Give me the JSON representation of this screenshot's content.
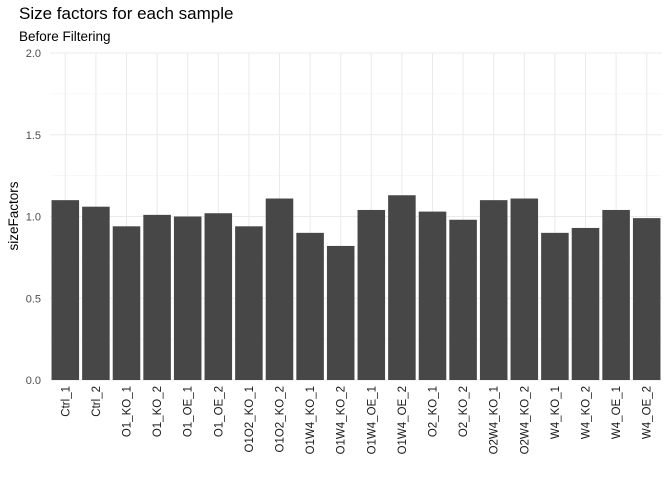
{
  "chart_data": {
    "type": "bar",
    "title": "Size factors for each sample",
    "subtitle": "Before Filtering",
    "xlabel": "",
    "ylabel": "sizeFactors",
    "ylim": [
      0,
      2.0
    ],
    "yticks": [
      "0.0",
      "0.5",
      "1.0",
      "1.5",
      "2.0"
    ],
    "ytick_values": [
      0,
      0.5,
      1.0,
      1.5,
      2.0
    ],
    "grid": true,
    "bar_color": "#474747",
    "categories": [
      "Ctrl_1",
      "Ctrl_2",
      "O1_KO_1",
      "O1_KO_2",
      "O1_OE_1",
      "O1_OE_2",
      "O1O2_KO_1",
      "O1O2_KO_2",
      "O1W4_KO_1",
      "O1W4_KO_2",
      "O1W4_OE_1",
      "O1W4_OE_2",
      "O2_KO_1",
      "O2_KO_2",
      "O2W4_KO_1",
      "O2W4_KO_2",
      "W4_KO_1",
      "W4_KO_2",
      "W4_OE_1",
      "W4_OE_2"
    ],
    "values": [
      1.1,
      1.06,
      0.94,
      1.01,
      1.0,
      1.02,
      0.94,
      1.11,
      0.9,
      0.82,
      1.04,
      1.13,
      1.03,
      0.98,
      1.1,
      1.11,
      0.9,
      0.93,
      1.04,
      0.99
    ]
  }
}
